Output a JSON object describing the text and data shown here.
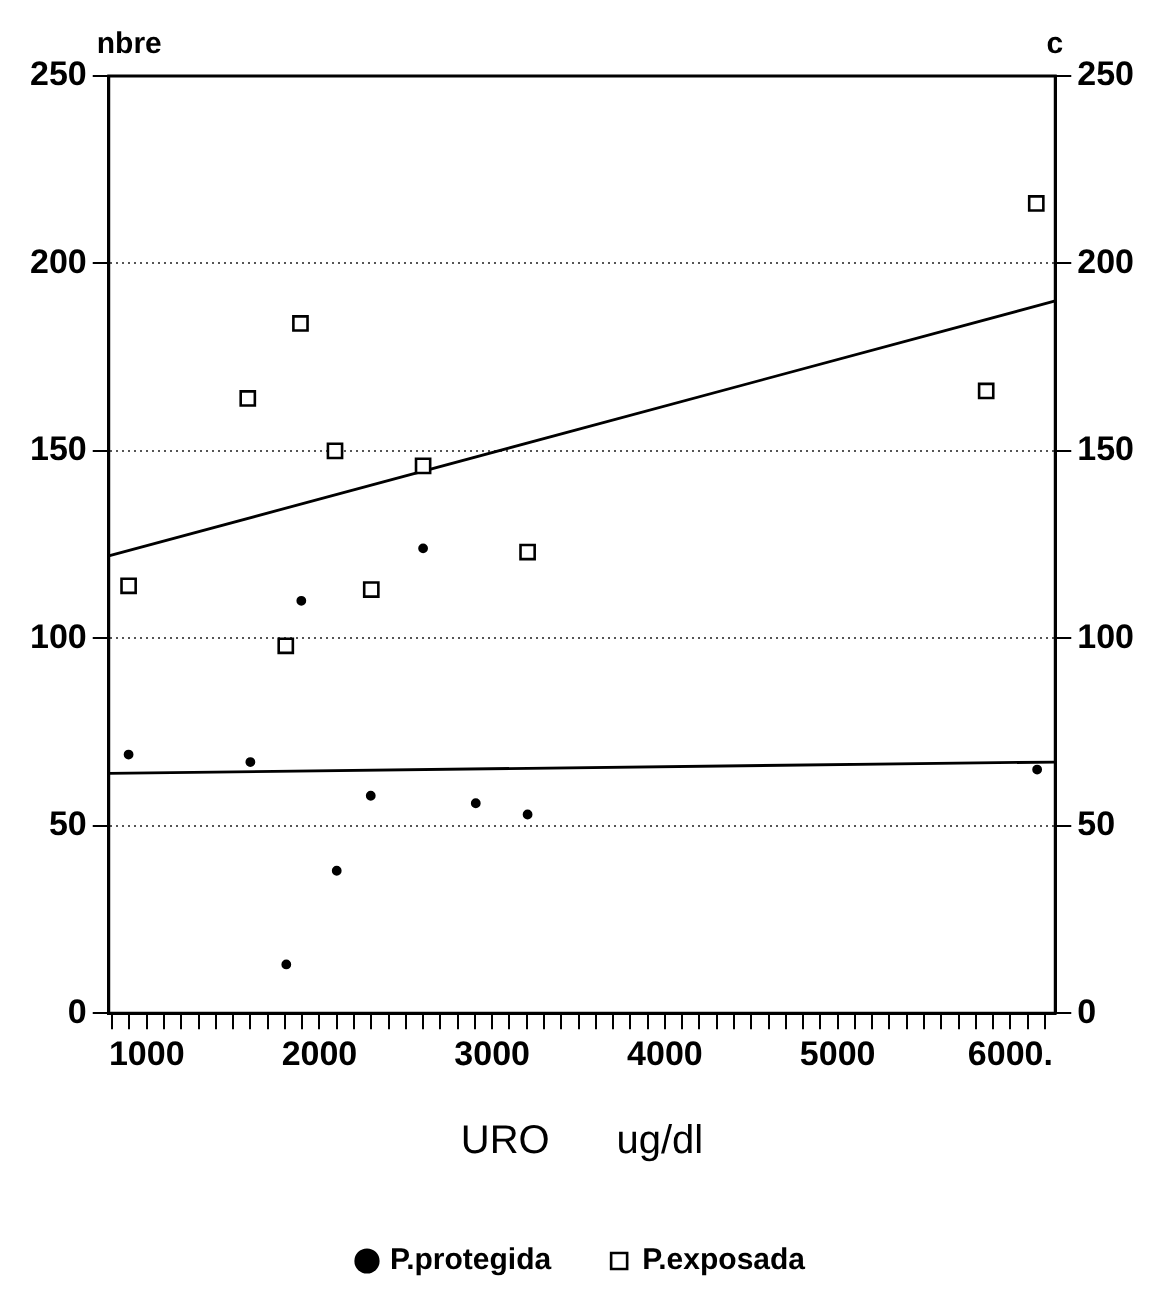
{
  "chart_data": {
    "type": "scatter",
    "xlabel": "URO      ug/dl",
    "ylabel": "nbre",
    "y2label": "c",
    "xlim": [
      780,
      6260
    ],
    "ylim": [
      0,
      250
    ],
    "y2lim": [
      0,
      250
    ],
    "xticks": [
      {
        "value": 800,
        "label": null
      },
      {
        "value": 900,
        "label": null
      },
      1000,
      {
        "value": 1100,
        "label": null
      },
      {
        "value": 1200,
        "label": null
      },
      {
        "value": 1300,
        "label": null
      },
      {
        "value": 1400,
        "label": null
      },
      {
        "value": 1500,
        "label": null
      },
      {
        "value": 1600,
        "label": null
      },
      {
        "value": 1700,
        "label": null
      },
      {
        "value": 1800,
        "label": null
      },
      {
        "value": 1900,
        "label": null
      },
      2000,
      {
        "value": 2100,
        "label": null
      },
      {
        "value": 2200,
        "label": null
      },
      {
        "value": 2300,
        "label": null
      },
      {
        "value": 2400,
        "label": null
      },
      {
        "value": 2500,
        "label": null
      },
      {
        "value": 2600,
        "label": null
      },
      {
        "value": 2700,
        "label": null
      },
      {
        "value": 2800,
        "label": null
      },
      {
        "value": 2900,
        "label": null
      },
      3000,
      {
        "value": 3100,
        "label": null
      },
      {
        "value": 3200,
        "label": null
      },
      {
        "value": 3300,
        "label": null
      },
      {
        "value": 3400,
        "label": null
      },
      {
        "value": 3500,
        "label": null
      },
      {
        "value": 3600,
        "label": null
      },
      {
        "value": 3700,
        "label": null
      },
      {
        "value": 3800,
        "label": null
      },
      {
        "value": 3900,
        "label": null
      },
      4000,
      {
        "value": 4100,
        "label": null
      },
      {
        "value": 4200,
        "label": null
      },
      {
        "value": 4300,
        "label": null
      },
      {
        "value": 4400,
        "label": null
      },
      {
        "value": 4500,
        "label": null
      },
      {
        "value": 4600,
        "label": null
      },
      {
        "value": 4700,
        "label": null
      },
      {
        "value": 4800,
        "label": null
      },
      {
        "value": 4900,
        "label": null
      },
      5000,
      {
        "value": 5100,
        "label": null
      },
      {
        "value": 5200,
        "label": null
      },
      {
        "value": 5300,
        "label": null
      },
      {
        "value": 5400,
        "label": null
      },
      {
        "value": 5500,
        "label": null
      },
      {
        "value": 5600,
        "label": null
      },
      {
        "value": 5700,
        "label": null
      },
      {
        "value": 5800,
        "label": null
      },
      {
        "value": 5900,
        "label": null
      },
      {
        "value": 6000,
        "label": "6000."
      },
      {
        "value": 6100,
        "label": null
      },
      {
        "value": 6200,
        "label": null
      }
    ],
    "yticks": [
      0,
      50,
      100,
      150,
      200,
      250
    ],
    "y2ticks": [
      0,
      50,
      100,
      150,
      200,
      250
    ],
    "grid": "y",
    "legend": "bottom",
    "series": [
      {
        "name": "P.protegida",
        "type": "scatter",
        "marker": "circle",
        "color": "#000000",
        "x": [
          895,
          1600,
          1895,
          2600,
          2297,
          2905,
          3205,
          2100,
          1808,
          6155
        ],
        "values": [
          69,
          67,
          110,
          124,
          58,
          56,
          53,
          38,
          13,
          65
        ]
      },
      {
        "name": "P.exposada",
        "type": "scatter",
        "marker": "square",
        "color": "#000000",
        "x": [
          895,
          1585,
          1890,
          2090,
          2600,
          3205,
          5860,
          6150,
          1805,
          2300
        ],
        "values": [
          114,
          164,
          184,
          150,
          146,
          123,
          166,
          216,
          98,
          113
        ]
      },
      {
        "type": "line",
        "marker": "none",
        "color": "#000000",
        "x": [
          780,
          6260
        ],
        "values": [
          64,
          67
        ]
      },
      {
        "type": "line",
        "marker": "none",
        "color": "#000000",
        "x": [
          780,
          6260
        ],
        "values": [
          122,
          190
        ]
      }
    ]
  }
}
